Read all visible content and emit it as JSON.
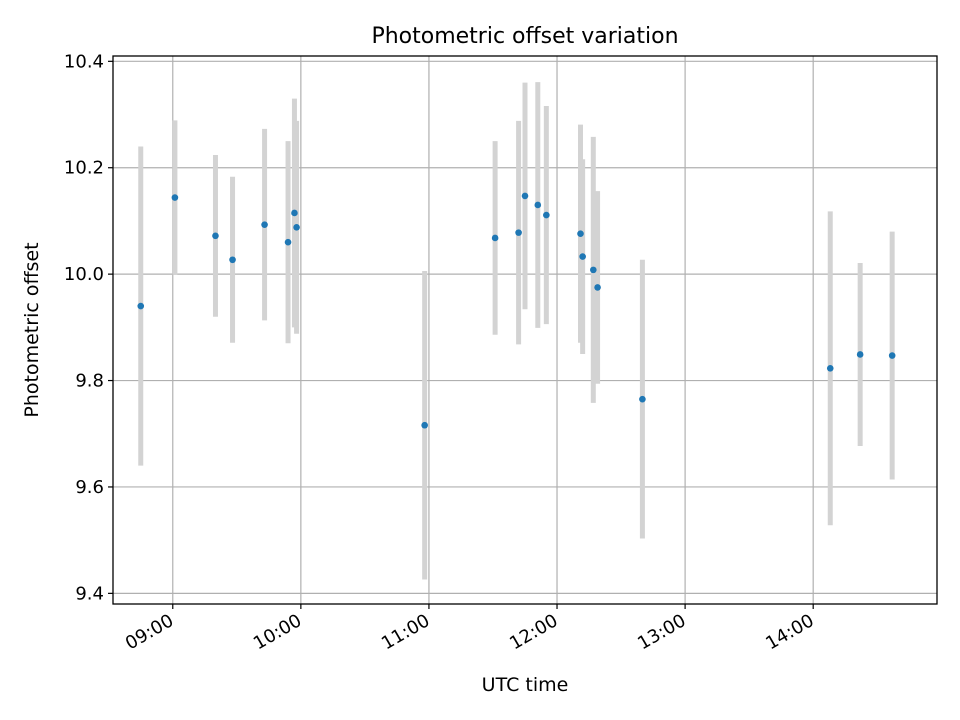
{
  "chart_data": {
    "type": "scatter",
    "title": "Photometric offset variation",
    "xlabel": "UTC time",
    "ylabel": "Photometric offset",
    "x_type": "time",
    "xlim": [
      "08:32",
      "14:58"
    ],
    "ylim": [
      9.38,
      10.41
    ],
    "x_ticks": [
      "09:00",
      "10:00",
      "11:00",
      "12:00",
      "13:00",
      "14:00"
    ],
    "y_ticks": [
      "9.4",
      "9.6",
      "9.8",
      "10.0",
      "10.2",
      "10.4"
    ],
    "grid": true,
    "colors": {
      "point": "#1f77b4",
      "errorbar": "#d3d3d3",
      "grid": "#b0b0b0"
    },
    "points": [
      {
        "x": "08:45",
        "y": 9.94,
        "err": 0.3
      },
      {
        "x": "09:01",
        "y": 10.144,
        "err": 0.145
      },
      {
        "x": "09:20",
        "y": 10.072,
        "err": 0.152
      },
      {
        "x": "09:28",
        "y": 10.027,
        "err": 0.156
      },
      {
        "x": "09:43",
        "y": 10.093,
        "err": 0.18
      },
      {
        "x": "09:54",
        "y": 10.06,
        "err": 0.19
      },
      {
        "x": "09:57",
        "y": 10.115,
        "err": 0.215
      },
      {
        "x": "09:58",
        "y": 10.088,
        "err": 0.2
      },
      {
        "x": "10:58",
        "y": 9.716,
        "err": 0.29
      },
      {
        "x": "11:31",
        "y": 10.068,
        "err": 0.182
      },
      {
        "x": "11:42",
        "y": 10.078,
        "err": 0.21
      },
      {
        "x": "11:45",
        "y": 10.147,
        "err": 0.213
      },
      {
        "x": "11:51",
        "y": 10.13,
        "err": 0.231
      },
      {
        "x": "11:55",
        "y": 10.111,
        "err": 0.205
      },
      {
        "x": "12:11",
        "y": 10.076,
        "err": 0.205
      },
      {
        "x": "12:12",
        "y": 10.033,
        "err": 0.183
      },
      {
        "x": "12:17",
        "y": 10.008,
        "err": 0.25
      },
      {
        "x": "12:19",
        "y": 9.975,
        "err": 0.181
      },
      {
        "x": "12:40",
        "y": 9.765,
        "err": 0.262
      },
      {
        "x": "14:08",
        "y": 9.823,
        "err": 0.295
      },
      {
        "x": "14:22",
        "y": 9.849,
        "err": 0.172
      },
      {
        "x": "14:37",
        "y": 9.847,
        "err": 0.233
      }
    ]
  }
}
